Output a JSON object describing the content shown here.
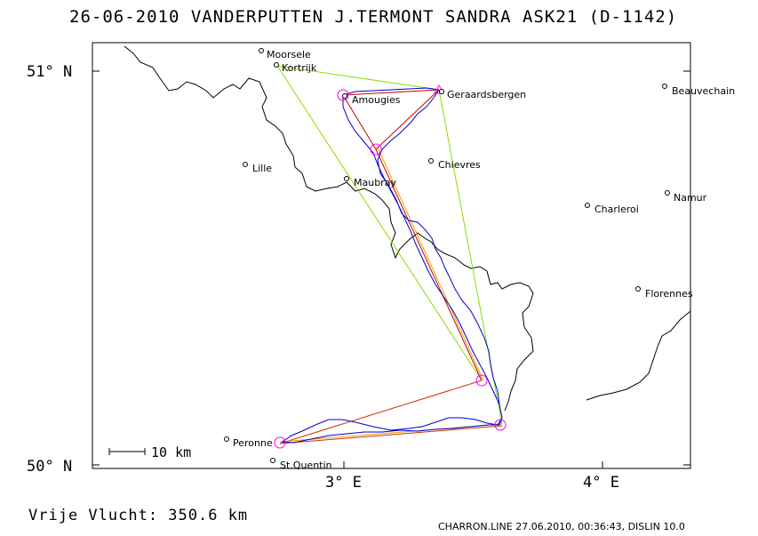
{
  "title": "26-06-2010   VANDERPUTTEN J.TERMONT SANDRA   ASK21 (D-1142)",
  "footer": {
    "distance": "Vrije Vlucht:  350.6 km",
    "software": "CHARRON.LINE 27.06.2010, 00:36:43, DISLIN 10.0"
  },
  "axes": {
    "lat_labels": [
      "51° N",
      "50° N"
    ],
    "lon_labels": [
      "3° E",
      "4° E"
    ]
  },
  "scale_label": "10 km",
  "places": [
    {
      "name": "Moorsele"
    },
    {
      "name": "Kortrijk"
    },
    {
      "name": "Geraardsbergen"
    },
    {
      "name": "Beauvechain"
    },
    {
      "name": "Amougies"
    },
    {
      "name": "Lille"
    },
    {
      "name": "Chievres"
    },
    {
      "name": "Maubray"
    },
    {
      "name": "Namur"
    },
    {
      "name": "Charleroi"
    },
    {
      "name": "Florennes"
    },
    {
      "name": "Peronne"
    },
    {
      "name": "St.Quentin"
    }
  ],
  "colors": {
    "track": "#0000cc",
    "task_line": "#cc0000",
    "alt_line": "#e8a000",
    "free_line": "#88dd00",
    "turnpoint": "#ff00ff",
    "border": "#000000"
  }
}
